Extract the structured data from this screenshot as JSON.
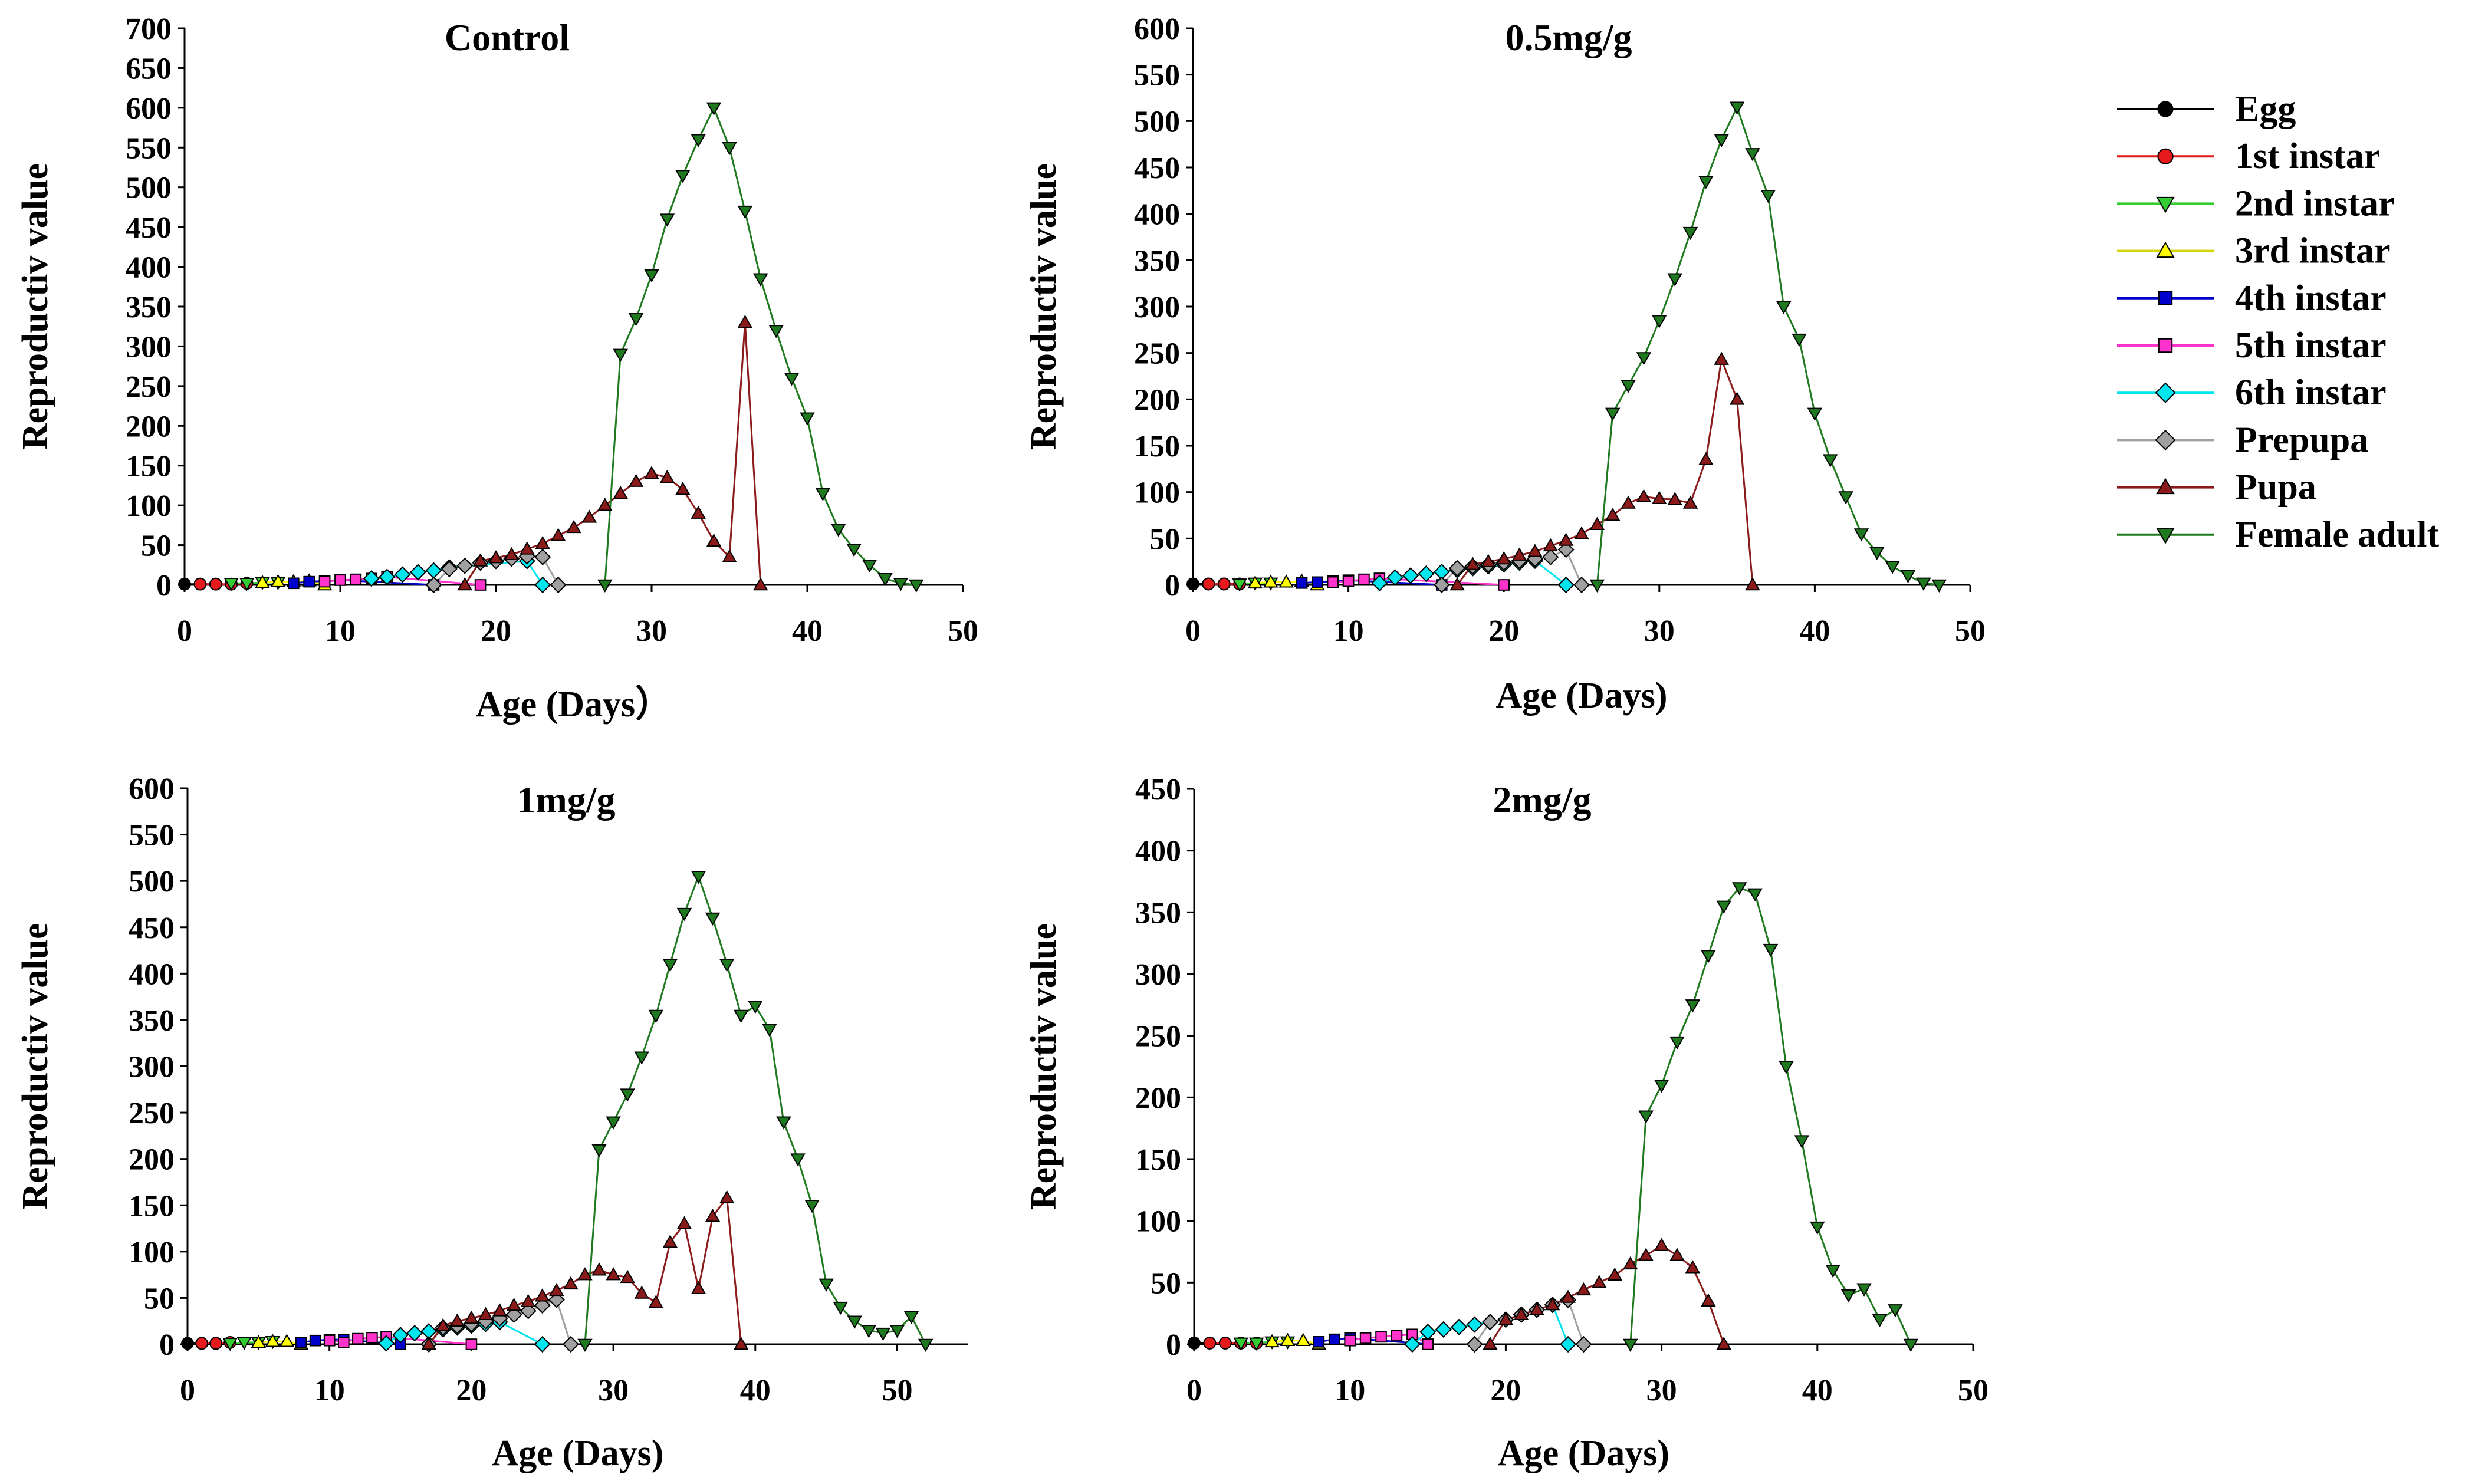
{
  "legend": [
    {
      "name": "Egg",
      "color": "#000000",
      "marker": "circle"
    },
    {
      "name": "1st instar",
      "color": "#e41a1c",
      "marker": "circle"
    },
    {
      "name": "2nd instar",
      "color": "#33cc33",
      "marker": "tri-down"
    },
    {
      "name": "3rd instar",
      "color": "#ffff00",
      "marker": "tri-up"
    },
    {
      "name": "4th instar",
      "color": "#0000cc",
      "marker": "square"
    },
    {
      "name": "5th instar",
      "color": "#ff33cc",
      "marker": "square"
    },
    {
      "name": "6th instar",
      "color": "#00e5ee",
      "marker": "diamond"
    },
    {
      "name": "Prepupa",
      "color": "#a0a0a0",
      "marker": "diamond"
    },
    {
      "name": "Pupa",
      "color": "#8b1a1a",
      "marker": "tri-up"
    },
    {
      "name": "Female adult",
      "color": "#1f7a1f",
      "marker": "tri-down"
    }
  ],
  "chart_data": [
    {
      "type": "line",
      "title": "Control",
      "xlabel": "Age (Days）",
      "ylabel": "Reproductiv value",
      "xlim": [
        0,
        50
      ],
      "ylim": [
        0,
        700
      ],
      "xticks": [
        0,
        10,
        20,
        30,
        40,
        50
      ],
      "yticks": [
        0,
        50,
        100,
        150,
        200,
        250,
        300,
        350,
        400,
        450,
        500,
        550,
        600,
        650,
        700
      ],
      "series": [
        {
          "name": "Egg",
          "x": [
            0,
            1,
            2
          ],
          "y": [
            1,
            1,
            1
          ]
        },
        {
          "name": "1st instar",
          "x": [
            1,
            2,
            3,
            4
          ],
          "y": [
            1,
            1,
            1,
            2
          ]
        },
        {
          "name": "2nd instar",
          "x": [
            3,
            4,
            5,
            6
          ],
          "y": [
            2,
            2,
            3,
            3
          ]
        },
        {
          "name": "3rd instar",
          "x": [
            5,
            6,
            7,
            8,
            9
          ],
          "y": [
            3,
            4,
            4,
            5,
            0
          ]
        },
        {
          "name": "4th instar",
          "x": [
            7,
            8,
            9,
            10,
            16
          ],
          "y": [
            2,
            4,
            5,
            6,
            0
          ]
        },
        {
          "name": "5th instar",
          "x": [
            9,
            10,
            11,
            12,
            13,
            19
          ],
          "y": [
            4,
            6,
            7,
            8,
            10,
            0
          ]
        },
        {
          "name": "6th instar",
          "x": [
            12,
            13,
            14,
            15,
            16,
            17,
            22,
            23
          ],
          "y": [
            8,
            10,
            13,
            16,
            18,
            22,
            30,
            0
          ]
        },
        {
          "name": "Prepupa",
          "x": [
            16,
            17,
            18,
            19,
            20,
            21,
            22,
            23,
            24
          ],
          "y": [
            0,
            20,
            24,
            28,
            30,
            33,
            36,
            35,
            0
          ]
        },
        {
          "name": "Pupa",
          "x": [
            18,
            19,
            20,
            21,
            22,
            23,
            24,
            25,
            26,
            27,
            28,
            29,
            30,
            31,
            32,
            33,
            34,
            35,
            36,
            37
          ],
          "y": [
            0,
            30,
            34,
            38,
            45,
            52,
            62,
            72,
            85,
            100,
            115,
            130,
            140,
            135,
            120,
            90,
            55,
            35,
            330,
            0
          ]
        },
        {
          "name": "Female adult",
          "x": [
            27,
            28,
            29,
            30,
            31,
            32,
            33,
            34,
            35,
            36,
            37,
            38,
            39,
            40,
            41,
            42,
            43,
            44,
            45,
            46,
            47
          ],
          "y": [
            0,
            290,
            335,
            390,
            460,
            515,
            560,
            600,
            550,
            470,
            385,
            320,
            260,
            210,
            115,
            70,
            45,
            25,
            8,
            2,
            0
          ]
        }
      ]
    },
    {
      "type": "line",
      "title": "0.5mg/g",
      "xlabel": "Age (Days)",
      "ylabel": "Reproductiv value",
      "xlim": [
        0,
        50
      ],
      "ylim": [
        0,
        600
      ],
      "xticks": [
        0,
        10,
        20,
        30,
        40,
        50
      ],
      "yticks": [
        0,
        50,
        100,
        150,
        200,
        250,
        300,
        350,
        400,
        450,
        500,
        550,
        600
      ],
      "series": [
        {
          "name": "Egg",
          "x": [
            0,
            1,
            2
          ],
          "y": [
            1,
            1,
            1
          ]
        },
        {
          "name": "1st instar",
          "x": [
            1,
            2,
            3
          ],
          "y": [
            1,
            1,
            1
          ]
        },
        {
          "name": "2nd instar",
          "x": [
            3,
            4,
            5
          ],
          "y": [
            1,
            2,
            2
          ]
        },
        {
          "name": "3rd instar",
          "x": [
            4,
            5,
            6,
            7,
            8
          ],
          "y": [
            2,
            3,
            3,
            4,
            0
          ]
        },
        {
          "name": "4th instar",
          "x": [
            7,
            8,
            9,
            10,
            16
          ],
          "y": [
            2,
            3,
            4,
            5,
            0
          ]
        },
        {
          "name": "5th instar",
          "x": [
            9,
            10,
            11,
            12,
            20
          ],
          "y": [
            3,
            4,
            6,
            7,
            0
          ]
        },
        {
          "name": "6th instar",
          "x": [
            12,
            13,
            14,
            15,
            16,
            17,
            18,
            19,
            20,
            21,
            22,
            24
          ],
          "y": [
            2,
            8,
            10,
            12,
            14,
            16,
            18,
            20,
            22,
            24,
            26,
            0
          ]
        },
        {
          "name": "Prepupa",
          "x": [
            16,
            17,
            18,
            19,
            20,
            21,
            22,
            23,
            24,
            25
          ],
          "y": [
            0,
            18,
            20,
            22,
            24,
            26,
            28,
            30,
            38,
            0
          ]
        },
        {
          "name": "Pupa",
          "x": [
            17,
            18,
            19,
            20,
            21,
            22,
            23,
            24,
            25,
            26,
            27,
            28,
            29,
            30,
            31,
            32,
            33,
            34,
            35,
            36
          ],
          "y": [
            0,
            22,
            25,
            28,
            32,
            36,
            42,
            48,
            55,
            65,
            75,
            88,
            95,
            93,
            92,
            88,
            135,
            243,
            200,
            0
          ]
        },
        {
          "name": "Female adult",
          "x": [
            26,
            27,
            28,
            29,
            30,
            31,
            32,
            33,
            34,
            35,
            36,
            37,
            38,
            39,
            40,
            41,
            42,
            43,
            44,
            45,
            46,
            47,
            48
          ],
          "y": [
            0,
            185,
            215,
            245,
            285,
            330,
            380,
            435,
            480,
            515,
            465,
            420,
            300,
            265,
            185,
            135,
            95,
            55,
            35,
            20,
            10,
            2,
            0
          ]
        }
      ]
    },
    {
      "type": "line",
      "title": "1mg/g",
      "xlabel": "Age (Days)",
      "ylabel": "Reproductiv value",
      "xlim": [
        0,
        55
      ],
      "ylim": [
        0,
        600
      ],
      "xticks": [
        0,
        10,
        20,
        30,
        40,
        50
      ],
      "yticks": [
        0,
        50,
        100,
        150,
        200,
        250,
        300,
        350,
        400,
        450,
        500,
        550,
        600
      ],
      "series": [
        {
          "name": "Egg",
          "x": [
            0,
            1,
            2
          ],
          "y": [
            1,
            1,
            1
          ]
        },
        {
          "name": "1st instar",
          "x": [
            1,
            2,
            3
          ],
          "y": [
            1,
            1,
            2
          ]
        },
        {
          "name": "2nd instar",
          "x": [
            3,
            4,
            5,
            6
          ],
          "y": [
            1,
            2,
            2,
            3
          ]
        },
        {
          "name": "3rd instar",
          "x": [
            5,
            6,
            7,
            8
          ],
          "y": [
            2,
            3,
            3,
            0
          ]
        },
        {
          "name": "4th instar",
          "x": [
            8,
            9,
            10,
            11,
            15
          ],
          "y": [
            2,
            4,
            5,
            5,
            0
          ]
        },
        {
          "name": "5th instar",
          "x": [
            10,
            11,
            12,
            13,
            14,
            20
          ],
          "y": [
            4,
            2,
            6,
            7,
            8,
            0
          ]
        },
        {
          "name": "6th instar",
          "x": [
            14,
            15,
            16,
            17,
            18,
            19,
            20,
            21,
            22,
            25
          ],
          "y": [
            1,
            10,
            12,
            14,
            16,
            18,
            20,
            22,
            24,
            0
          ]
        },
        {
          "name": "Prepupa",
          "x": [
            17,
            18,
            19,
            20,
            21,
            22,
            23,
            24,
            25,
            26,
            27
          ],
          "y": [
            0,
            18,
            20,
            22,
            25,
            28,
            32,
            36,
            42,
            48,
            0
          ]
        },
        {
          "name": "Pupa",
          "x": [
            17,
            18,
            19,
            20,
            21,
            22,
            23,
            24,
            25,
            26,
            27,
            28,
            29,
            30,
            31,
            32,
            33,
            34,
            35,
            36,
            37,
            38,
            39
          ],
          "y": [
            0,
            20,
            25,
            28,
            32,
            36,
            42,
            46,
            52,
            58,
            65,
            75,
            80,
            75,
            72,
            55,
            45,
            110,
            130,
            60,
            138,
            158,
            0
          ]
        },
        {
          "name": "Female adult",
          "x": [
            28,
            29,
            30,
            31,
            32,
            33,
            34,
            35,
            36,
            37,
            38,
            39,
            40,
            41,
            42,
            43,
            44,
            45,
            46,
            47,
            48,
            49,
            50,
            51,
            52
          ],
          "y": [
            0,
            210,
            240,
            270,
            310,
            355,
            410,
            465,
            505,
            460,
            410,
            355,
            365,
            340,
            240,
            200,
            150,
            65,
            40,
            25,
            15,
            12,
            15,
            30,
            0
          ]
        }
      ]
    },
    {
      "type": "line",
      "title": "2mg/g",
      "xlabel": "Age (Days)",
      "ylabel": "Reproductiv value",
      "xlim": [
        0,
        50
      ],
      "ylim": [
        0,
        450
      ],
      "xticks": [
        0,
        10,
        20,
        30,
        40,
        50
      ],
      "yticks": [
        0,
        50,
        100,
        150,
        200,
        250,
        300,
        350,
        400,
        450
      ],
      "series": [
        {
          "name": "Egg",
          "x": [
            0,
            1,
            2
          ],
          "y": [
            1,
            1,
            1
          ]
        },
        {
          "name": "1st instar",
          "x": [
            1,
            2,
            3,
            4
          ],
          "y": [
            1,
            1,
            1,
            1
          ]
        },
        {
          "name": "2nd instar",
          "x": [
            3,
            4,
            5,
            6
          ],
          "y": [
            1,
            1,
            2,
            2
          ]
        },
        {
          "name": "3rd instar",
          "x": [
            5,
            6,
            7,
            8
          ],
          "y": [
            2,
            3,
            3,
            0
          ]
        },
        {
          "name": "4th instar",
          "x": [
            8,
            9,
            10,
            15
          ],
          "y": [
            2,
            4,
            5,
            0
          ]
        },
        {
          "name": "5th instar",
          "x": [
            10,
            11,
            12,
            13,
            14,
            15
          ],
          "y": [
            3,
            5,
            6,
            7,
            8,
            0
          ]
        },
        {
          "name": "6th instar",
          "x": [
            14,
            15,
            16,
            17,
            18,
            19,
            20,
            21,
            22,
            23,
            24
          ],
          "y": [
            0,
            10,
            12,
            14,
            16,
            18,
            20,
            24,
            28,
            32,
            0
          ]
        },
        {
          "name": "Prepupa",
          "x": [
            18,
            19,
            20,
            21,
            22,
            23,
            24,
            25
          ],
          "y": [
            0,
            18,
            20,
            24,
            28,
            32,
            36,
            0
          ]
        },
        {
          "name": "Pupa",
          "x": [
            19,
            20,
            21,
            22,
            23,
            24,
            25,
            26,
            27,
            28,
            29,
            30,
            31,
            32,
            33,
            34
          ],
          "y": [
            0,
            20,
            24,
            28,
            32,
            38,
            44,
            50,
            56,
            65,
            72,
            80,
            72,
            62,
            35,
            0
          ]
        },
        {
          "name": "Female adult",
          "x": [
            28,
            29,
            30,
            31,
            32,
            33,
            34,
            35,
            36,
            37,
            38,
            39,
            40,
            41,
            42,
            43,
            44,
            45,
            46
          ],
          "y": [
            0,
            185,
            210,
            245,
            275,
            315,
            355,
            370,
            365,
            320,
            225,
            165,
            95,
            60,
            40,
            45,
            20,
            28,
            0
          ]
        }
      ]
    }
  ]
}
